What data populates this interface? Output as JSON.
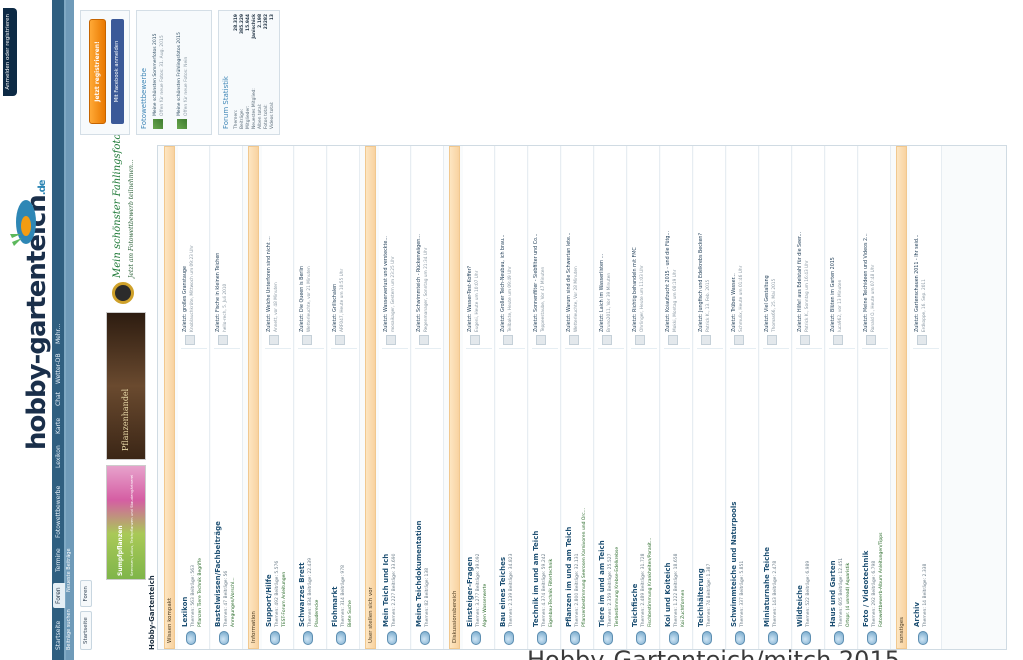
{
  "header": {
    "login_label": "Anmelden oder registrieren",
    "logo_text": "hobby-gartenteich",
    "logo_tld": ".de"
  },
  "nav": {
    "items": [
      "Startseite",
      "Foren",
      "Termine",
      "Fotowettbewerbe",
      "Lexikon",
      "Karte",
      "Chat",
      "Wetter-DB",
      "Mehr..."
    ],
    "active_index": 1,
    "subnav": [
      "Beiträge suchen",
      "Neueste Beiträge"
    ]
  },
  "breadcrumb": [
    "Startseite",
    "Foren"
  ],
  "banners": {
    "flower_title": "Sumpfpflanzen",
    "flower_sub": "Seerosen, Lotus, Teichpflanzen und Staudengärtnerei",
    "plants_title": "Pflanzenhandel",
    "contest_title": "Mein schönster Fahlingsfoto",
    "contest_sub": "Jetzt am Fotowettbewerb teilnehmen..."
  },
  "page_title": "Hobby-Gartenteich",
  "forum": {
    "categories": [
      {
        "name": "Wissen kompakt",
        "rows": [
          {
            "title": "Lexikon",
            "stats": "Themen: 563 Beiträge: 563",
            "subs": "Pflanzen  Tiere  Technik  Begriffe",
            "last_title": "Zuletzt: großes Granstauge",
            "last_meta": "Knoblauchkröte, Mittwoch um 09:23 Uhr"
          },
          {
            "title": "Bastelwissen/Fachbeiträge",
            "stats": "Themen: 47 Beiträge: 56",
            "subs": "Anregungen/Vorschl...",
            "last_title": "Zuletzt: Fische in kleinen Teichen",
            "last_meta": "hello-rech, 5. Juli 2010"
          }
        ]
      },
      {
        "name": "Information",
        "rows": [
          {
            "title": "Support/Hilfe",
            "stats": "Themen: 492 Beiträge: 5.576",
            "subs": "TEST-Forum  Anleitungen",
            "last_title": "Zuletzt: Welche Unterforen sind nicht ...",
            "last_meta": "Annett, vor 48 Minuten"
          },
          {
            "title": "Schwarzes Brett",
            "stats": "Themen: 834 Beiträge: 22.439",
            "subs": "Plauderecke",
            "last_title": "Zuletzt: Die Queen is Berlin",
            "last_meta": "Wetterleuchte, vor 21 Minuten"
          },
          {
            "title": "Flohmarkt",
            "stats": "Themen: 314 Beiträge: 978",
            "subs": "Biete  Suche",
            "last_title": "Zuletzt: Grillschalen",
            "last_meta": "ARF047, Heute um 10:55 Uhr"
          }
        ]
      },
      {
        "name": "User stellen sich vor",
        "rows": [
          {
            "title": "Mein Teich und Ich",
            "stats": "Themen: 2.227 Beiträge: 33.690",
            "subs": "",
            "last_title": "Zuletzt: Wasserverlust und versteckte...",
            "last_meta": "mosaikager, Gestern um 23:25 Uhr"
          },
          {
            "title": "Meine Teichdokumentation",
            "stats": "Themen: 82 Beiträge: 138",
            "subs": "",
            "last_title": "Zuletzt: Schwimmteich - Rückenwägen...",
            "last_meta": "Regenmanager, Sonntag um 21:34 Uhr"
          }
        ]
      },
      {
        "name": "Diskussionsbereich",
        "rows": [
          {
            "title": "Einsteiger-Fragen",
            "stats": "Themen: 3.277 Beiträge: 39.092",
            "subs": "Algen  Wasserwerte",
            "last_title": "Zuletzt: Wasser-Test-Koffer?",
            "last_meta": "Eugeni, Heute um 10:07 Uhr"
          },
          {
            "title": "Bau eines Teiches",
            "stats": "Themen: 2.139 Beiträge: 34.823",
            "subs": "",
            "last_title": "Zuletzt: Großer Teich-Neubau, ich brau...",
            "last_meta": "Teilbakte, Heute um 09:49 Uhr"
          },
          {
            "title": "Technik im und am Teich",
            "stats": "Themen: 4.374 Beiträge: 59.242",
            "subs": "Eigenbau-Technik  Filtertechnik",
            "last_title": "Zuletzt: Sonnenfilter - Siebfilter und Co...",
            "last_meta": "Teppeestaube, Vor 47 Minuten"
          },
          {
            "title": "Pflanzen im und am Teich",
            "stats": "Themen: 2.800 Beiträge: 32.131",
            "subs": "Pflanzenbestimmung  Seerosen  Karnivoren und Orc...",
            "last_title": "Zuletzt: Warum sind die Schwertan lete...",
            "last_meta": "Wetterleuchte, Vor 28 Minuten"
          },
          {
            "title": "Tiere im und am Teich",
            "stats": "Themen: 2.359 Beiträge: 25.527",
            "subs": "Tierbestimmung  Krebse-Edelkrebse",
            "last_title": "Zuletzt: Laich im Wasserlisten ...",
            "last_meta": "Bruno2011, Vor 39 Minuten"
          },
          {
            "title": "Teichfische",
            "stats": "Themen: 2.489 Beiträge: 31.728",
            "subs": "Fischbestimmung  Krankheiten/Parasit...",
            "last_title": "Zuletzt: Richtig behandeln mit FMC",
            "last_meta": "Ohrlinger, Heute um 11:03 Uhr"
          },
          {
            "title": "Koi und Koiteich",
            "stats": "Themen: 1.222 Beiträge: 18.658",
            "subs": "Koi Zuchtformen",
            "last_title": "Zuletzt: Koiaufzucht 2015 - und die Fütg...",
            "last_meta": "Mokki, Montag um 08:19 Uhr"
          },
          {
            "title": "Teichhälterung",
            "stats": "Themen: 74 Beiträge: 1.387",
            "subs": "",
            "last_title": "Zuletzt: Jungfisch und Edelkrebs Becken?",
            "last_meta": "Patrick K., 13. Feb. 2015"
          },
          {
            "title": "Schwimmteiche und Naturpools",
            "stats": "Themen: 337 Beiträge: 5.851",
            "subs": "",
            "last_title": "Zuletzt: Trübes Wasser...",
            "last_meta": "Schmulix, Heute um 01:46 Uhr"
          },
          {
            "title": "Miniaturnahe Teiche",
            "stats": "Themen: 143 Beiträge: 2.478",
            "subs": "",
            "last_title": "Zuletzt: Viel Gestaltung",
            "last_meta": "Thomas66, 25. Mai 2015"
          },
          {
            "title": "Wildteiche",
            "stats": "Themen: 522 Beiträge: 6.989",
            "subs": "",
            "last_title": "Zuletzt: Hilfe! aus Edelstahl für die Seer...",
            "last_meta": "Patrick K., Sonntag um 16:43 Uhr"
          },
          {
            "title": "Haus und Garten",
            "stats": "Themen: 605 Beiträge: 12.451",
            "subs": "Ortspr. (4 unread)  Aquaristik",
            "last_title": "Zuletzt: Blüten im Garten 2015",
            "last_meta": "luca962, vor 13 Minuten"
          },
          {
            "title": "Foto / Videotechnik",
            "stats": "Themen: 292 Beiträge: 6.798",
            "subs": "Fotowettbewerb-Album  Anleitungen/Tipps",
            "last_title": "Zuletzt: Meine Teichideen und Videos 2...",
            "last_meta": "Ronald O., Heute um 07:48 Uhr"
          }
        ]
      },
      {
        "name": "sonstiges",
        "rows": [
          {
            "title": "Archiv",
            "stats": "Themen: 14 Beiträge: 2.338",
            "subs": "",
            "last_title": "Zuletzt: Gartenschauen 2011 - Ihr seid...",
            "last_meta": "Erdkoppe, 16. Sep. 2011"
          }
        ]
      }
    ]
  },
  "sidebar": {
    "register_label": "Jetzt registrieren!",
    "facebook_label": "Mit Facebook anmelden",
    "contests_title": "Fotowettbewerbe",
    "contests": [
      {
        "title": "Meine schönsten Sommerfotos 2015",
        "meta": "Offen für neue Fotos: 31. Aug. 2015"
      },
      {
        "title": "Meine schönsten Frühlingsfotos 2015",
        "meta": "Offen für neue Fotos: Nein"
      }
    ],
    "stats_title": "Forum Statistik",
    "stats": [
      {
        "k": "Themen:",
        "v": "28.319"
      },
      {
        "k": "Beiträge:",
        "v": "385.229"
      },
      {
        "k": "Mitglieder:",
        "v": "15.944"
      },
      {
        "k": "Neuestes Mitglied:",
        "v": "Janischick"
      },
      {
        "k": "Alben total:",
        "v": "2.198"
      },
      {
        "k": "Fotos total:",
        "v": "23282"
      },
      {
        "k": "Videos total:",
        "v": "13"
      }
    ]
  },
  "watermark": "Hobby-Gartenteich/mitch 2015",
  "colors": {
    "nav_bg": "#2f5f80",
    "category_bg": "#f8d2a0",
    "link": "#1d4f72",
    "register_button": "#e97800",
    "facebook_button": "#3b5998"
  }
}
